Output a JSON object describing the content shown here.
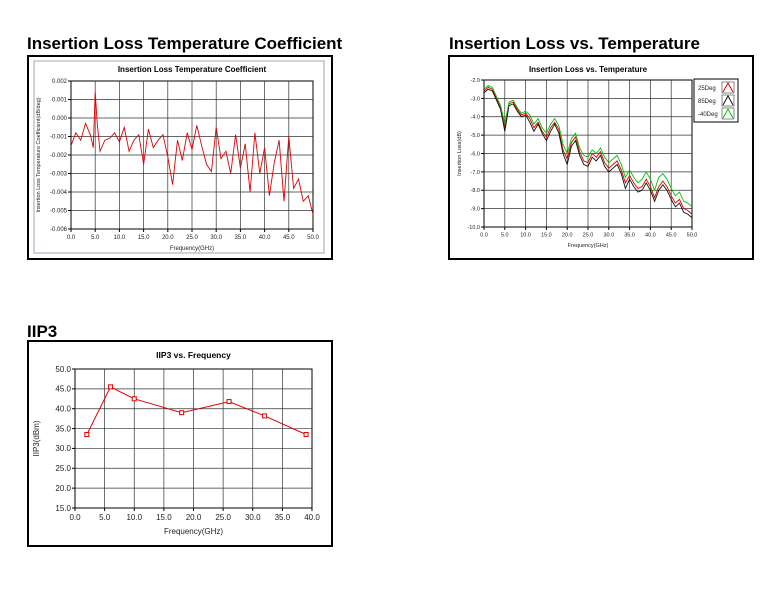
{
  "headings": {
    "loss_tc": "Insertion Loss Temperature Coefficient",
    "loss_temp": "Insertion Loss vs. Temperature",
    "iip3": "IIP3"
  },
  "chart_data": [
    {
      "id": "loss_tc",
      "type": "line",
      "title": "Insertion Loss Temperature Coefficient",
      "xlabel": "Frequency(GHz)",
      "ylabel": "Insertion Loss Temperature Coefficient(dB/deg)",
      "xlim": [
        0,
        50
      ],
      "ylim": [
        -0.006,
        0.002
      ],
      "xticks": [
        "0.0",
        "5.0",
        "10.0",
        "15.0",
        "20.0",
        "25.0",
        "30.0",
        "35.0",
        "40.0",
        "45.0",
        "50.0"
      ],
      "yticks": [
        "0.002",
        "0.001",
        "0.000",
        "-0.001",
        "-0.002",
        "-0.003",
        "-0.004",
        "-0.005",
        "-0.006"
      ],
      "grid": true,
      "color": "#e00000",
      "series": [
        {
          "x": [
            0,
            1,
            2,
            3,
            4,
            4.6,
            5,
            5.4,
            6,
            7,
            8,
            9,
            10,
            11,
            12,
            13,
            14,
            15,
            16,
            17,
            18,
            19,
            20,
            21,
            22,
            23,
            24,
            25,
            26,
            27,
            28,
            29,
            30,
            31,
            32,
            33,
            34,
            35,
            36,
            37,
            38,
            39,
            40,
            41,
            42,
            43,
            44,
            45,
            46,
            47,
            48,
            49,
            50
          ],
          "y": [
            -0.0015,
            -0.0008,
            -0.0012,
            -0.0003,
            -0.0009,
            -0.0016,
            0.0014,
            -0.0002,
            -0.0018,
            -0.0012,
            -0.0011,
            -0.0008,
            -0.0013,
            -0.0005,
            -0.0018,
            -0.0012,
            -0.0009,
            -0.0025,
            -0.0006,
            -0.0016,
            -0.0012,
            -0.0009,
            -0.0021,
            -0.0036,
            -0.0012,
            -0.0023,
            -0.0008,
            -0.0017,
            -0.0004,
            -0.0015,
            -0.0025,
            -0.0029,
            -0.0005,
            -0.0022,
            -0.0018,
            -0.003,
            -0.0009,
            -0.0027,
            -0.0014,
            -0.004,
            -0.0008,
            -0.003,
            -0.0016,
            -0.0042,
            -0.0024,
            -0.0012,
            -0.0045,
            -0.001,
            -0.0038,
            -0.0033,
            -0.0045,
            -0.0042,
            -0.0052
          ]
        }
      ]
    },
    {
      "id": "loss_temp",
      "type": "line",
      "title": "Insertion Loss vs. Temperature",
      "xlabel": "Frequency(GHz)",
      "ylabel": "Insertion Loss(dB)",
      "xlim": [
        0,
        50
      ],
      "ylim": [
        -10.0,
        -2.0
      ],
      "xticks": [
        "0.0",
        "5.0",
        "10.0",
        "15.0",
        "20.0",
        "25.0",
        "30.0",
        "35.0",
        "40.0",
        "45.0",
        "50.0"
      ],
      "yticks": [
        "-2.0",
        "-3.0",
        "-4.0",
        "-5.0",
        "-6.0",
        "-7.0",
        "-8.0",
        "-9.0",
        "-10.0"
      ],
      "grid": true,
      "legend": "top-right",
      "series": [
        {
          "name": "25Deg",
          "color": "#e00000",
          "x": [
            0,
            1,
            2,
            3,
            4,
            5,
            6,
            7,
            8,
            9,
            10,
            11,
            12,
            13,
            14,
            15,
            16,
            17,
            18,
            19,
            20,
            21,
            22,
            23,
            24,
            25,
            26,
            27,
            28,
            29,
            30,
            31,
            32,
            33,
            34,
            35,
            36,
            37,
            38,
            39,
            40,
            41,
            42,
            43,
            44,
            45,
            46,
            47,
            48,
            49,
            50
          ],
          "y": [
            -2.6,
            -2.4,
            -2.5,
            -3.0,
            -3.5,
            -4.6,
            -3.3,
            -3.2,
            -3.6,
            -3.9,
            -3.8,
            -4.1,
            -4.6,
            -4.3,
            -4.8,
            -5.1,
            -4.6,
            -4.3,
            -4.7,
            -5.8,
            -6.3,
            -5.4,
            -5.1,
            -5.9,
            -6.4,
            -6.5,
            -6.0,
            -6.2,
            -5.9,
            -6.5,
            -6.8,
            -6.6,
            -6.4,
            -6.9,
            -7.6,
            -7.2,
            -7.6,
            -7.9,
            -7.8,
            -7.4,
            -7.8,
            -8.4,
            -7.8,
            -7.5,
            -7.8,
            -8.3,
            -8.7,
            -8.5,
            -9.0,
            -9.1,
            -9.3
          ]
        },
        {
          "name": "85Deg",
          "color": "#111111",
          "x": [
            0,
            1,
            2,
            3,
            4,
            5,
            6,
            7,
            8,
            9,
            10,
            11,
            12,
            13,
            14,
            15,
            16,
            17,
            18,
            19,
            20,
            21,
            22,
            23,
            24,
            25,
            26,
            27,
            28,
            29,
            30,
            31,
            32,
            33,
            34,
            35,
            36,
            37,
            38,
            39,
            40,
            41,
            42,
            43,
            44,
            45,
            46,
            47,
            48,
            49,
            50
          ],
          "y": [
            -2.7,
            -2.5,
            -2.6,
            -3.1,
            -3.6,
            -4.8,
            -3.4,
            -3.3,
            -3.7,
            -4.0,
            -3.9,
            -4.3,
            -4.8,
            -4.4,
            -4.9,
            -5.3,
            -4.8,
            -4.4,
            -4.9,
            -6.0,
            -6.6,
            -5.6,
            -5.3,
            -6.1,
            -6.6,
            -6.7,
            -6.2,
            -6.4,
            -6.1,
            -6.7,
            -7.0,
            -6.8,
            -6.6,
            -7.1,
            -7.9,
            -7.4,
            -7.8,
            -8.1,
            -8.0,
            -7.6,
            -8.0,
            -8.6,
            -8.0,
            -7.7,
            -8.0,
            -8.5,
            -8.9,
            -8.7,
            -9.2,
            -9.3,
            -9.5
          ]
        },
        {
          "name": "-40Deg",
          "color": "#00c000",
          "x": [
            0,
            1,
            2,
            3,
            4,
            5,
            6,
            7,
            8,
            9,
            10,
            11,
            12,
            13,
            14,
            15,
            16,
            17,
            18,
            19,
            20,
            21,
            22,
            23,
            24,
            25,
            26,
            27,
            28,
            29,
            30,
            31,
            32,
            33,
            34,
            35,
            36,
            37,
            38,
            39,
            40,
            41,
            42,
            43,
            44,
            45,
            46,
            47,
            48,
            49,
            50
          ],
          "y": [
            -2.5,
            -2.3,
            -2.4,
            -2.9,
            -3.4,
            -4.4,
            -3.2,
            -3.1,
            -3.5,
            -3.8,
            -3.7,
            -3.9,
            -4.4,
            -4.1,
            -4.6,
            -4.9,
            -4.4,
            -4.1,
            -4.5,
            -5.5,
            -6.0,
            -5.2,
            -4.9,
            -5.7,
            -6.1,
            -6.2,
            -5.8,
            -6.0,
            -5.7,
            -6.2,
            -6.5,
            -6.3,
            -6.1,
            -6.6,
            -7.3,
            -6.9,
            -7.3,
            -7.6,
            -7.4,
            -7.0,
            -7.4,
            -8.0,
            -7.3,
            -7.1,
            -7.4,
            -7.9,
            -8.3,
            -8.1,
            -8.6,
            -8.7,
            -8.9
          ]
        }
      ]
    },
    {
      "id": "iip3",
      "type": "line",
      "title": "IIP3 vs. Frequency",
      "xlabel": "Frequency(GHz)",
      "ylabel": "IIP3(dBm)",
      "xlim": [
        0,
        40
      ],
      "ylim": [
        15.0,
        50.0
      ],
      "xticks": [
        "0.0",
        "5.0",
        "10.0",
        "15.0",
        "20.0",
        "25.0",
        "30.0",
        "35.0",
        "40.0"
      ],
      "yticks": [
        "50.0",
        "45.0",
        "40.0",
        "35.0",
        "30.0",
        "25.0",
        "20.0",
        "15.0"
      ],
      "grid": true,
      "markers": true,
      "color": "#e00000",
      "series": [
        {
          "x": [
            2,
            6,
            10,
            18,
            26,
            32,
            39
          ],
          "y": [
            33.5,
            45.5,
            42.5,
            39.0,
            41.8,
            38.2,
            33.5
          ]
        }
      ]
    }
  ]
}
